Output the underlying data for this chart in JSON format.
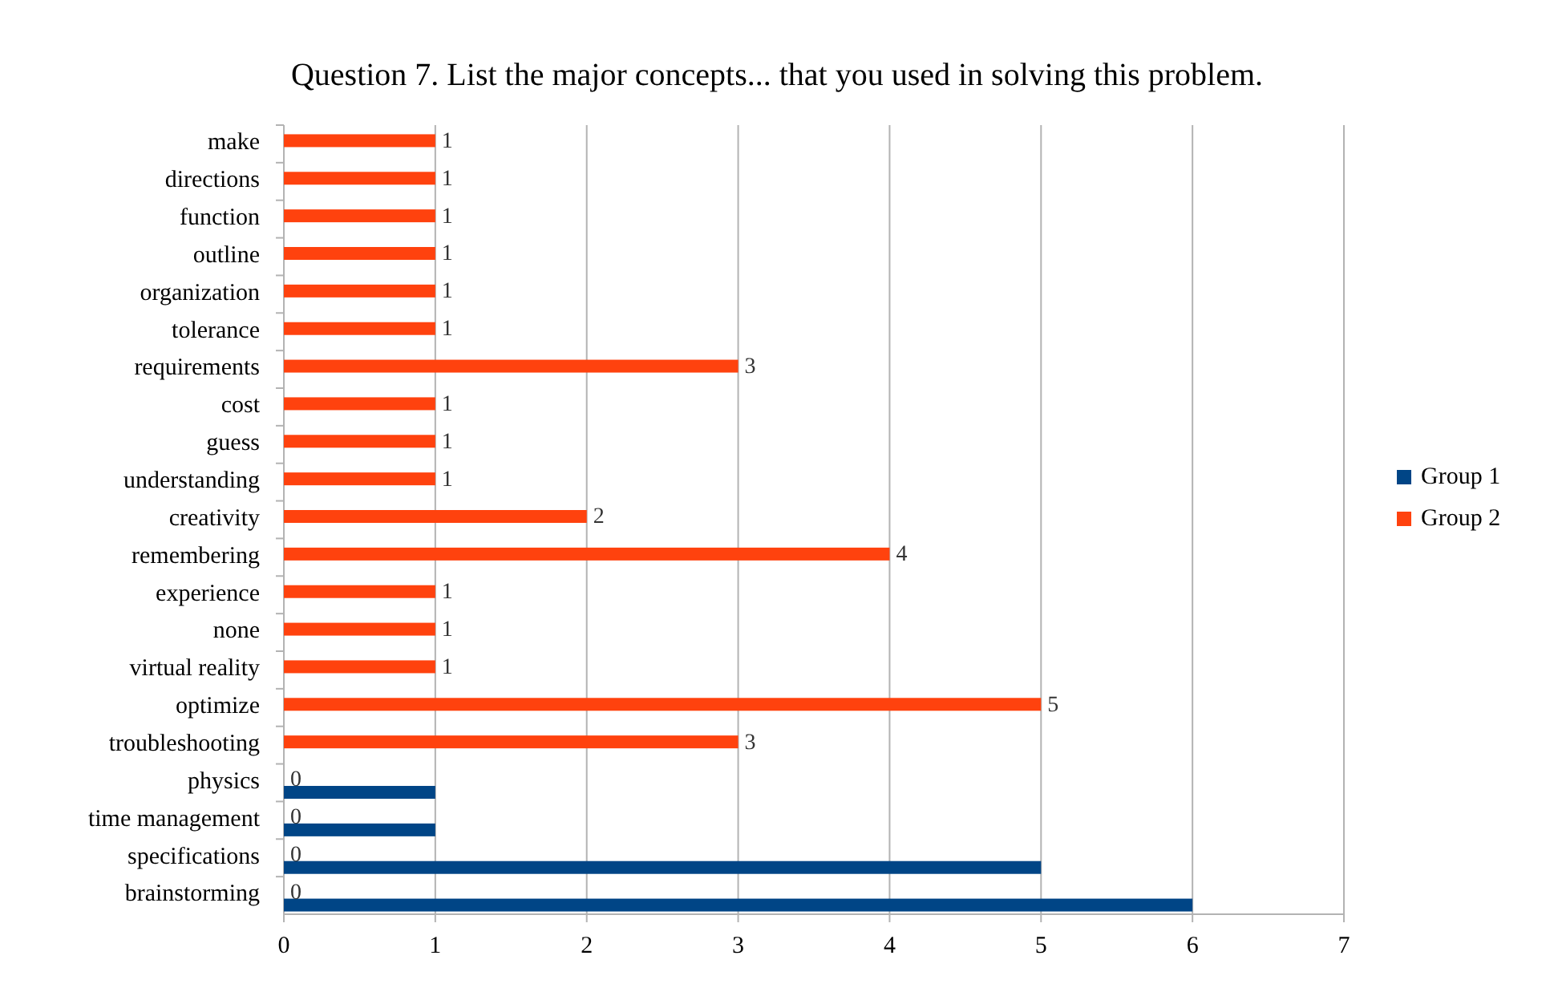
{
  "chart_data": {
    "type": "bar",
    "orientation": "horizontal",
    "title": "Question 7. List the major concepts... that you used in solving this problem.",
    "categories": [
      "make",
      "directions",
      "function",
      "outline",
      "organization",
      "tolerance",
      "requirements",
      "cost",
      "guess",
      "understanding",
      "creativity",
      "remembering",
      "experience",
      "none",
      "virtual reality",
      "optimize",
      "troubleshooting",
      "physics",
      "time management",
      "specifications",
      "brainstorming"
    ],
    "series": [
      {
        "name": "Group 1",
        "color": "#004586",
        "values": [
          null,
          null,
          null,
          null,
          null,
          null,
          null,
          null,
          null,
          null,
          null,
          null,
          null,
          null,
          null,
          null,
          null,
          1,
          1,
          5,
          6
        ]
      },
      {
        "name": "Group 2",
        "color": "#ff420e",
        "values": [
          1,
          1,
          1,
          1,
          1,
          1,
          3,
          1,
          1,
          1,
          2,
          4,
          1,
          1,
          1,
          5,
          3,
          0,
          0,
          0,
          0
        ],
        "value_labels": [
          "1",
          "1",
          "1",
          "1",
          "1",
          "1",
          "3",
          "1",
          "1",
          "1",
          "2",
          "4",
          "1",
          "1",
          "1",
          "5",
          "3",
          "0",
          "0",
          "0",
          "0"
        ]
      }
    ],
    "xlim": [
      0,
      7
    ],
    "xticks": [
      0,
      1,
      2,
      3,
      4,
      5,
      6,
      7
    ],
    "grid": "x",
    "legend": "right"
  }
}
